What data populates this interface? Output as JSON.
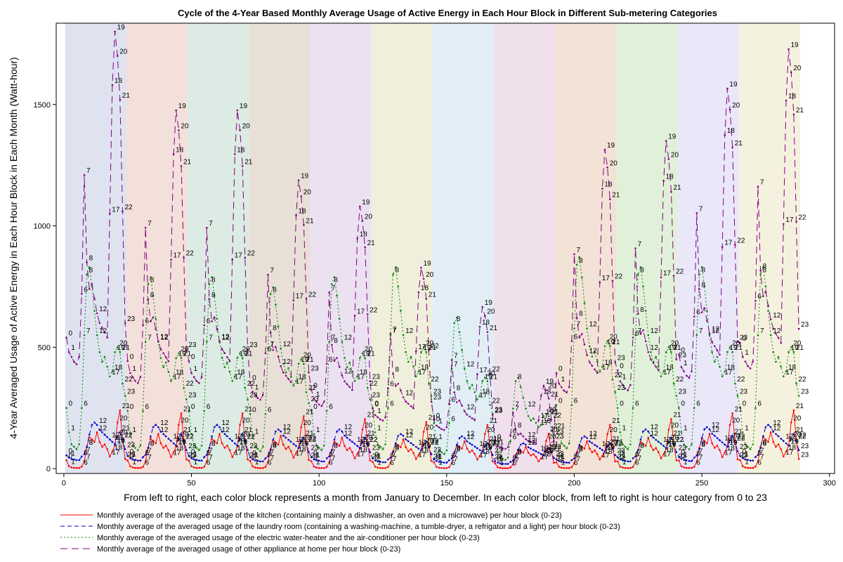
{
  "chart_data": {
    "type": "line",
    "title": "Cycle of the 4-Year Based Monthly Average Usage of Active Energy in Each Hour Block in Different Sub-metering Categories",
    "xlabel": "From left to right, each color block represents a month from January to December. In each color block, from left to right is hour category from 0 to 23",
    "ylabel": "4-Year Averaged Usage of Active Energy in Each Hour Block in Each Month (Watt-hour)",
    "xlim": [
      -3,
      302
    ],
    "ylim": [
      -20,
      1835
    ],
    "x_ticks": [
      "0",
      "50",
      "100",
      "150",
      "200",
      "250",
      "300"
    ],
    "y_ticks": [
      "0",
      "500",
      "1000",
      "1500"
    ],
    "month_block_colors": [
      "#dfe3f0",
      "#f3e0db",
      "#dcebe3",
      "#e8e0d6",
      "#ebe1f1",
      "#f0efdb",
      "#e1eef6",
      "#f0e0ec",
      "#f2e3d6",
      "#e1f0d9",
      "#e9e7f8",
      "#f5f1df"
    ],
    "series": [
      {
        "name": "Monthly average of the averaged usage of the kitchen (containing mainly a dishwasher, an oven and a microwave) per hour block (0-23)",
        "color": "#ff0000",
        "dash": "solid",
        "shape": [
          35,
          10,
          5,
          3,
          3,
          3,
          8,
          30,
          90,
          130,
          120,
          110,
          150,
          110,
          90,
          100,
          80,
          50,
          70,
          95,
          190,
          240,
          120,
          40
        ],
        "month_scale": [
          1.0,
          0.95,
          0.95,
          0.9,
          0.85,
          0.8,
          0.75,
          0.6,
          0.75,
          0.85,
          0.95,
          1.0
        ]
      },
      {
        "name": "Monthly average of the averaged usage of the laundry room (containing a washing-machine, a tumble-dryer, a refrigator and a light) per hour block (0-23)",
        "color": "#0000cc",
        "dash": "6,4",
        "shape": [
          55,
          45,
          40,
          38,
          35,
          35,
          50,
          60,
          90,
          140,
          180,
          190,
          180,
          160,
          150,
          140,
          130,
          120,
          110,
          100,
          130,
          150,
          120,
          80
        ],
        "month_scale": [
          1.0,
          0.95,
          0.95,
          0.85,
          0.85,
          0.75,
          0.7,
          0.55,
          0.7,
          0.85,
          0.9,
          0.95
        ]
      },
      {
        "name": "Monthly average of the averaged usage of the electric water-heater and the air-conditioner per hour block (0-23)",
        "color": "#008800",
        "dash": "2,3",
        "shape": [
          250,
          150,
          100,
          90,
          80,
          100,
          250,
          550,
          800,
          830,
          750,
          650,
          550,
          480,
          440,
          460,
          420,
          380,
          400,
          480,
          500,
          480,
          350,
          300
        ],
        "month_scale": [
          1.0,
          0.95,
          0.95,
          0.9,
          0.95,
          1.0,
          0.75,
          0.45,
          1.05,
          1.0,
          1.0,
          1.0
        ]
      },
      {
        "name": "Monthly average of the averaged usage of other appliance at home per hour block (0-23)",
        "color": "#800080",
        "dash": "10,6",
        "shape": [
          540,
          480,
          460,
          440,
          430,
          460,
          720,
          1210,
          850,
          740,
          760,
          700,
          640,
          600,
          580,
          560,
          540,
          1050,
          1580,
          1800,
          1700,
          1520,
          1060,
          600
        ],
        "month_scale": [
          1.0,
          0.82,
          0.82,
          0.66,
          0.6,
          0.46,
          0.37,
          0.19,
          0.73,
          0.75,
          0.87,
          0.96
        ]
      }
    ]
  }
}
